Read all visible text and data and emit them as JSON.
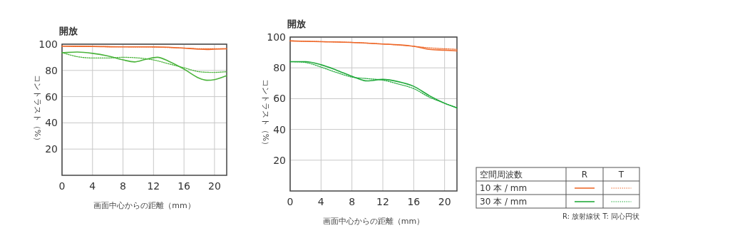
{
  "chart_data": [
    {
      "type": "line",
      "title": "開放",
      "xlabel": "画面中心からの距離（mm）",
      "ylabel": "コントラスト（%）",
      "xlim": [
        0,
        21.6
      ],
      "ylim": [
        0,
        100
      ],
      "xticks": [
        0,
        4,
        8,
        12,
        16,
        20
      ],
      "yticks": [
        20,
        40,
        60,
        80,
        100
      ],
      "grid": true,
      "legend": false,
      "series": [
        {
          "color": "#ee6a2c",
          "line_style": "solid",
          "x": [
            0,
            4,
            8,
            12,
            14,
            16,
            18,
            19,
            20,
            21.6
          ],
          "values": [
            98.5,
            98.3,
            98,
            98,
            97.7,
            97,
            96.2,
            96,
            96.2,
            96.5
          ]
        },
        {
          "color": "#ee6a2c",
          "line_style": "dotted",
          "x": [
            0,
            4,
            8,
            12,
            16,
            18,
            20,
            21.6
          ],
          "values": [
            98.5,
            98.2,
            98,
            97.8,
            97,
            96.5,
            96.5,
            96.5
          ]
        },
        {
          "color": "#4bb43c",
          "line_style": "solid",
          "x": [
            0,
            2,
            4,
            6,
            8,
            9.5,
            11,
            12.5,
            14,
            16,
            18,
            19,
            20,
            21.6
          ],
          "values": [
            93.5,
            94,
            93,
            91,
            88,
            86.5,
            88.5,
            90,
            87,
            81,
            74,
            72.5,
            73,
            76
          ]
        },
        {
          "color": "#4bb43c",
          "line_style": "dotted",
          "x": [
            0,
            2,
            4,
            6,
            8,
            10,
            12,
            14,
            16,
            18,
            20,
            21.6
          ],
          "values": [
            93.5,
            90.5,
            89.5,
            89.5,
            90,
            89.5,
            88,
            85,
            82,
            79,
            78.5,
            79
          ]
        }
      ]
    },
    {
      "type": "line",
      "title": "開放",
      "xlabel": "画面中心からの距離（mm）",
      "ylabel": "コントラスト（%）",
      "xlim": [
        0,
        21.6
      ],
      "ylim": [
        0,
        100
      ],
      "xticks": [
        0,
        4,
        8,
        12,
        16,
        20
      ],
      "yticks": [
        20,
        40,
        60,
        80,
        100
      ],
      "grid": true,
      "legend": "bottom right",
      "legend_title": "空間周波数",
      "annotations": [
        "R",
        "T",
        "R: 放射線状  T: 同心円状"
      ],
      "series": [
        {
          "name": "10 本 / mm",
          "color": "#ee6a2c",
          "line_style": "solid",
          "x": [
            0,
            4,
            8,
            12,
            14,
            16,
            18,
            20,
            21.6
          ],
          "values": [
            97.5,
            97,
            96.5,
            95.5,
            95,
            94,
            92,
            91.5,
            91
          ]
        },
        {
          "color": "#ee6a2c",
          "line_style": "dotted",
          "x": [
            0,
            8,
            12,
            16,
            18,
            21.6
          ],
          "values": [
            97.5,
            96.5,
            95.5,
            94,
            93,
            92
          ]
        },
        {
          "name": "30 本 / mm",
          "color": "#22aa3c",
          "line_style": "solid",
          "x": [
            0,
            2,
            4,
            6,
            8,
            10,
            12,
            14,
            16,
            18,
            20,
            21.6
          ],
          "values": [
            84,
            84,
            82,
            78.5,
            74.5,
            71.5,
            72.5,
            71,
            68,
            62,
            57,
            54
          ]
        },
        {
          "color": "#22aa3c",
          "line_style": "dotted",
          "x": [
            0,
            2,
            4,
            6,
            8,
            10,
            12,
            14,
            16,
            18,
            20,
            21.6
          ],
          "values": [
            84,
            83.5,
            80.5,
            77,
            74,
            73,
            72,
            69.5,
            66.5,
            61,
            57,
            54
          ]
        }
      ]
    }
  ]
}
